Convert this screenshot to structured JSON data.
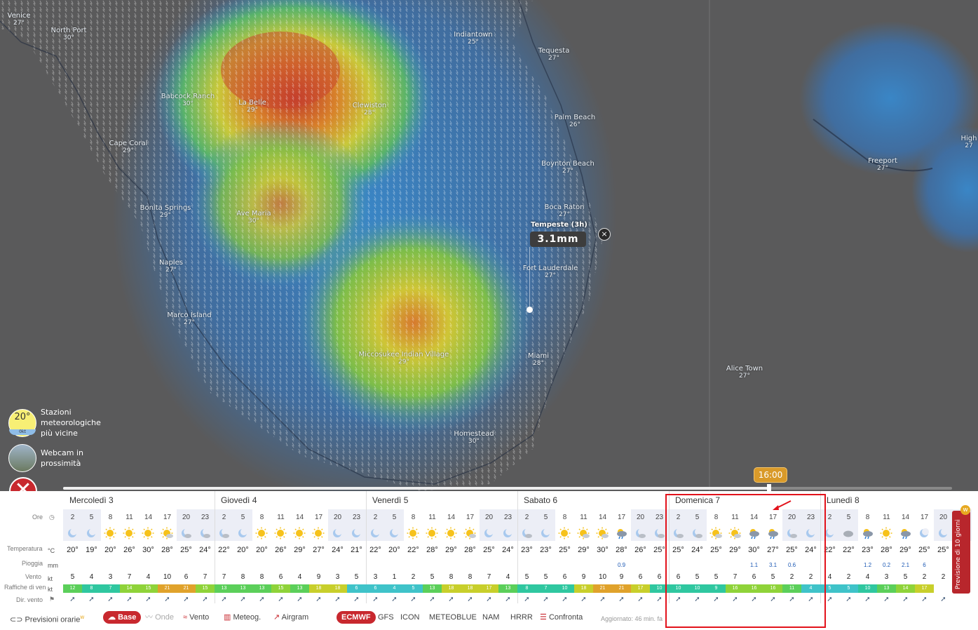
{
  "map": {
    "cities": [
      {
        "name": "Venice",
        "temp": "27°"
      },
      {
        "name": "North Port",
        "temp": "30°"
      },
      {
        "name": "Indiantown",
        "temp": "25°"
      },
      {
        "name": "Tequesta",
        "temp": "27°"
      },
      {
        "name": "Babcock Ranch",
        "temp": "30°"
      },
      {
        "name": "La Belle",
        "temp": "29°"
      },
      {
        "name": "Clewiston",
        "temp": "28°"
      },
      {
        "name": "Palm Beach",
        "temp": "26°"
      },
      {
        "name": "Cape Coral",
        "temp": "29°"
      },
      {
        "name": "Boynton Beach",
        "temp": "27°"
      },
      {
        "name": "Bonita Springs",
        "temp": "29°"
      },
      {
        "name": "Ave Maria",
        "temp": "30°"
      },
      {
        "name": "Boca Raton",
        "temp": "27°"
      },
      {
        "name": "Naples",
        "temp": "27°"
      },
      {
        "name": "Fort Lauderdale",
        "temp": "27°"
      },
      {
        "name": "Marco Island",
        "temp": "27°"
      },
      {
        "name": "Miccosukee Indian Village",
        "temp": "29°"
      },
      {
        "name": "Miami",
        "temp": "28°"
      },
      {
        "name": "Alice Town",
        "temp": "27°"
      },
      {
        "name": "Homestead",
        "temp": "30°"
      },
      {
        "name": "Freeport",
        "temp": "27°"
      },
      {
        "name": "High",
        "temp": "27"
      }
    ],
    "popup": {
      "label": "Tempeste (3h)",
      "value": "3.1mm",
      "close": "×"
    },
    "stations": {
      "temp": "20°",
      "unit": "0kt",
      "label_1": "Stazioni",
      "label_2": "meteorologiche",
      "label_3": "più vicine"
    },
    "webcam": {
      "label_1": "Webcam in",
      "label_2": "prossimità"
    },
    "close_label": "✕",
    "time_badge": "16:00"
  },
  "forecast": {
    "row_labels": {
      "hours": "Ore",
      "temp": "Temperatura",
      "rain": "Pioggia",
      "wind": "Vento",
      "gust": "Raffiche di ven",
      "dir": "Dir. vento"
    },
    "units": {
      "temp": "°C",
      "rain": "mm",
      "wind": "kt",
      "gust": "kt"
    },
    "days": [
      {
        "name": "Mercoledì 3",
        "hours": [
          "2",
          "5",
          "8",
          "11",
          "14",
          "17",
          "20",
          "23"
        ],
        "temps": [
          "20°",
          "19°",
          "20°",
          "26°",
          "30°",
          "28°",
          "25°",
          "24°"
        ],
        "rain": [
          "",
          "",
          "",
          "",
          "",
          "",
          "",
          ""
        ],
        "wind": [
          "5",
          "4",
          "3",
          "7",
          "4",
          "10",
          "6",
          "7"
        ],
        "gust": [
          "12",
          "8",
          "7",
          "14",
          "15",
          "21",
          "21",
          "15"
        ],
        "icons": [
          "moon",
          "moon",
          "sun",
          "sun",
          "sun",
          "suncloud",
          "mooncloud",
          "mooncloud"
        ]
      },
      {
        "name": "Giovedì 4",
        "hours": [
          "2",
          "5",
          "8",
          "11",
          "14",
          "17",
          "20",
          "23"
        ],
        "temps": [
          "22°",
          "20°",
          "20°",
          "26°",
          "29°",
          "27°",
          "24°",
          "21°"
        ],
        "rain": [
          "",
          "",
          "",
          "",
          "",
          "",
          "",
          ""
        ],
        "wind": [
          "7",
          "8",
          "8",
          "6",
          "4",
          "9",
          "3",
          "5"
        ],
        "gust": [
          "13",
          "13",
          "13",
          "15",
          "13",
          "18",
          "18",
          "6"
        ],
        "icons": [
          "mooncloud",
          "moon",
          "sun",
          "sun",
          "sun",
          "sun",
          "moon",
          "moon"
        ]
      },
      {
        "name": "Venerdì 5",
        "hours": [
          "2",
          "5",
          "8",
          "11",
          "14",
          "17",
          "20",
          "23"
        ],
        "temps": [
          "22°",
          "20°",
          "22°",
          "28°",
          "29°",
          "28°",
          "25°",
          "24°"
        ],
        "rain": [
          "",
          "",
          "",
          "",
          "",
          "",
          "",
          ""
        ],
        "wind": [
          "3",
          "1",
          "2",
          "5",
          "8",
          "8",
          "7",
          "4"
        ],
        "gust": [
          "6",
          "4",
          "5",
          "13",
          "18",
          "18",
          "17",
          "13"
        ],
        "icons": [
          "moon",
          "moon",
          "sun",
          "sun",
          "sun",
          "suncloud",
          "moon",
          "moon"
        ]
      },
      {
        "name": "Sabato 6",
        "hours": [
          "2",
          "5",
          "8",
          "11",
          "14",
          "17",
          "20",
          "23"
        ],
        "temps": [
          "23°",
          "23°",
          "25°",
          "29°",
          "30°",
          "28°",
          "26°",
          "25°"
        ],
        "rain": [
          "",
          "",
          "",
          "",
          "",
          "0.9",
          "",
          ""
        ],
        "wind": [
          "5",
          "5",
          "6",
          "9",
          "10",
          "9",
          "6",
          "6"
        ],
        "gust": [
          "8",
          "7",
          "10",
          "18",
          "21",
          "21",
          "17",
          "10"
        ],
        "icons": [
          "mooncloud",
          "moon",
          "sun",
          "suncloud",
          "suncloud",
          "rain",
          "mooncloud",
          "mooncloud"
        ]
      },
      {
        "name": "Domenica 7",
        "hours": [
          "2",
          "5",
          "8",
          "11",
          "14",
          "17",
          "20",
          "23"
        ],
        "temps": [
          "25°",
          "24°",
          "25°",
          "29°",
          "30°",
          "27°",
          "25°",
          "24°"
        ],
        "rain": [
          "",
          "",
          "",
          "",
          "1.1",
          "3.1",
          "0.6",
          ""
        ],
        "wind": [
          "6",
          "5",
          "5",
          "7",
          "6",
          "5",
          "2",
          "2"
        ],
        "gust": [
          "10",
          "10",
          "9",
          "16",
          "16",
          "16",
          "11",
          "4"
        ],
        "icons": [
          "mooncloud",
          "mooncloud",
          "suncloud",
          "suncloud",
          "rain",
          "rain",
          "mooncloud",
          "moon"
        ]
      },
      {
        "name": "Lunedì 8",
        "hours": [
          "2",
          "5",
          "8",
          "11",
          "14",
          "17",
          "20",
          ""
        ],
        "temps": [
          "22°",
          "22°",
          "23°",
          "28°",
          "29°",
          "25°",
          "25°",
          ""
        ],
        "rain": [
          "",
          "",
          "1.2",
          "0.2",
          "2.1",
          "6",
          "",
          ""
        ],
        "wind": [
          "4",
          "2",
          "4",
          "3",
          "5",
          "2",
          "2",
          ""
        ],
        "gust": [
          "5",
          "5",
          "10",
          "13",
          "14",
          "17",
          "",
          ""
        ],
        "icons": [
          "moon",
          "cloud",
          "rain",
          "sun",
          "rain",
          "moon",
          "moon",
          ""
        ]
      }
    ],
    "ribbon": "Previsione di 10 giorni",
    "ribbon_badge": "w"
  },
  "footer": {
    "hourly": "Previsioni orarie",
    "hourly_badge": "w",
    "base": "Base",
    "waves": "Onde",
    "wind": "Vento",
    "meteogram": "Meteog.",
    "airgram": "Airgram",
    "models": [
      "ECMWF",
      "GFS",
      "ICON",
      "METEOBLUE",
      "NAM",
      "HRRR"
    ],
    "compare": "Confronta",
    "updated": "Aggiornato: 46 min. fa"
  }
}
